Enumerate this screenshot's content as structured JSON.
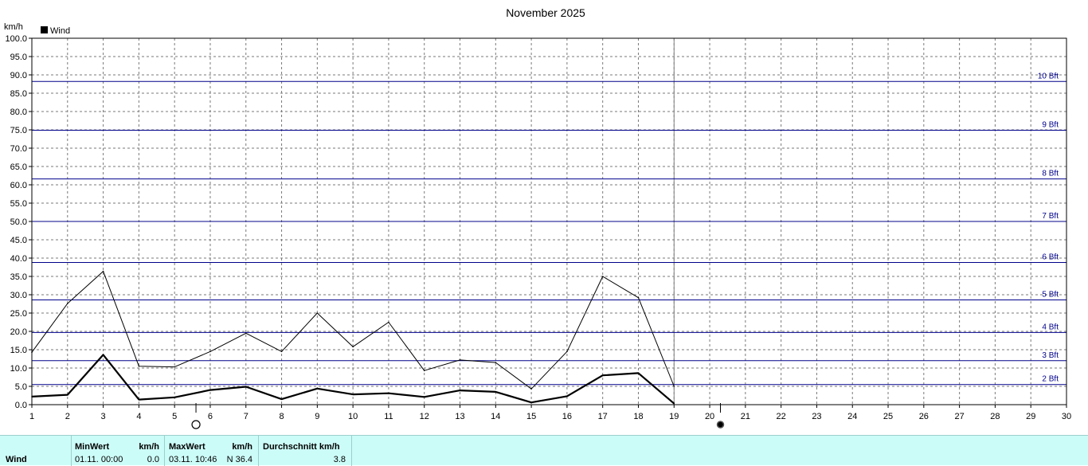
{
  "chart_data": {
    "type": "line",
    "title": "November 2025",
    "ylabel": "km/h",
    "xlim": [
      1,
      30
    ],
    "ylim": [
      0,
      100
    ],
    "x_ticks": [
      1,
      2,
      3,
      4,
      5,
      6,
      7,
      8,
      9,
      10,
      11,
      12,
      13,
      14,
      15,
      16,
      17,
      18,
      19,
      20,
      21,
      22,
      23,
      24,
      25,
      26,
      27,
      28,
      29,
      30
    ],
    "y_ticks": [
      0,
      5,
      10,
      15,
      20,
      25,
      30,
      35,
      40,
      45,
      50,
      55,
      60,
      65,
      70,
      75,
      80,
      85,
      90,
      95,
      100
    ],
    "grid": true,
    "legend": {
      "position": "top-left",
      "entries": [
        "Wind"
      ]
    },
    "series": [
      {
        "name": "Wind",
        "color": "#000000",
        "x": [
          1,
          2,
          3,
          4,
          5,
          6,
          7,
          8,
          9,
          10,
          11,
          12,
          13,
          14,
          15,
          16,
          17,
          18,
          19
        ],
        "values": [
          2.2,
          2.7,
          13.6,
          1.4,
          2.0,
          4.0,
          4.9,
          1.5,
          4.4,
          2.8,
          3.1,
          2.1,
          3.9,
          3.5,
          0.6,
          2.3,
          8.0,
          8.6,
          0.3
        ]
      },
      {
        "color": "#000000",
        "x": [
          1,
          2,
          3,
          4,
          5,
          6,
          7,
          8,
          9,
          10,
          11,
          12,
          13,
          14,
          15,
          16,
          17,
          18,
          19
        ],
        "values": [
          14.3,
          27.6,
          36.4,
          10.5,
          10.3,
          14.5,
          19.5,
          14.5,
          25.0,
          15.8,
          22.5,
          9.3,
          12.2,
          11.5,
          4.3,
          14.5,
          35.0,
          29.2,
          5.0
        ]
      }
    ],
    "beaufort_lines": [
      {
        "label": "2 Bft",
        "value": 5.5
      },
      {
        "label": "3 Bft",
        "value": 12.0
      },
      {
        "label": "4 Bft",
        "value": 19.7
      },
      {
        "label": "5 Bft",
        "value": 28.6
      },
      {
        "label": "6 Bft",
        "value": 38.8
      },
      {
        "label": "7 Bft",
        "value": 50.0
      },
      {
        "label": "8 Bft",
        "value": 61.6
      },
      {
        "label": "9 Bft",
        "value": 74.9
      },
      {
        "label": "10 Bft",
        "value": 88.2
      }
    ],
    "beaufort_color": "#00008b",
    "current_day_marker": 19,
    "moon_phases": [
      {
        "day": 5.6,
        "phase": "full-moon"
      },
      {
        "day": 20.3,
        "phase": "new-moon"
      }
    ]
  },
  "stats": {
    "row_label": "Wind",
    "min_header": "MinWert",
    "min_unit": "km/h",
    "min_time": "01.11.  00:00",
    "min_value": "0.0",
    "max_header": "MaxWert",
    "max_unit": "km/h",
    "max_time": "03.11.  10:46",
    "max_value": "N 36.4",
    "avg_header": "Durchschnitt km/h",
    "avg_value": "3.8"
  }
}
